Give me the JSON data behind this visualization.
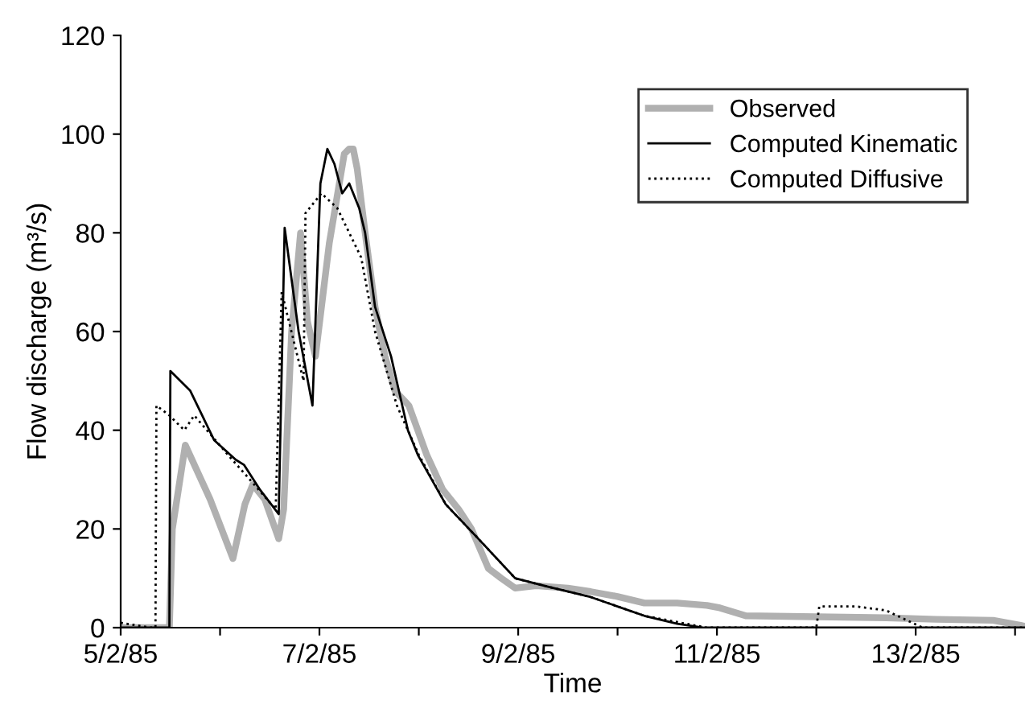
{
  "chart_data": {
    "type": "line",
    "xlabel": "Time",
    "ylabel": "Flow discharge (m³/s)",
    "xlim": [
      "1985-02-05T00:00",
      "1985-02-14T02:24"
    ],
    "ylim": [
      0,
      120
    ],
    "xticks": [
      {
        "value": "1985-02-05",
        "label": "5/2/85"
      },
      {
        "value": "1985-02-06",
        "label": null
      },
      {
        "value": "1985-02-07",
        "label": "7/2/85"
      },
      {
        "value": "1985-02-08",
        "label": null
      },
      {
        "value": "1985-02-09",
        "label": "9/2/85"
      },
      {
        "value": "1985-02-10",
        "label": null
      },
      {
        "value": "1985-02-11",
        "label": "11/2/85"
      },
      {
        "value": "1985-02-12",
        "label": null
      },
      {
        "value": "1985-02-13",
        "label": "13/2/85"
      },
      {
        "value": "1985-02-14",
        "label": null
      }
    ],
    "yticks": [
      0,
      20,
      40,
      60,
      80,
      100,
      120
    ],
    "grid": false,
    "legend": "top right",
    "marker": "none",
    "series": [
      {
        "name": "Observed",
        "color": "#b0b0b0",
        "line_style": "solid",
        "x": [
          "1985-02-05T00:00",
          "1985-02-05T11:46",
          "1985-02-05T12:29",
          "1985-02-05T15:36",
          "1985-02-05T21:36",
          "1985-02-06T03:07",
          "1985-02-06T06:00",
          "1985-02-06T07:55",
          "1985-02-06T10:48",
          "1985-02-06T14:10",
          "1985-02-06T15:22",
          "1985-02-06T17:17",
          "1985-02-06T19:26",
          "1985-02-06T21:07",
          "1985-02-06T23:02",
          "1985-02-07T02:24",
          "1985-02-07T06:00",
          "1985-02-07T07:12",
          "1985-02-07T08:10",
          "1985-02-07T09:07",
          "1985-02-07T11:02",
          "1985-02-07T13:26",
          "1985-02-07T15:50",
          "1985-02-07T18:14",
          "1985-02-07T21:36",
          "1985-02-08T01:55",
          "1985-02-08T05:46",
          "1985-02-08T09:36",
          "1985-02-08T12:43",
          "1985-02-08T16:48",
          "1985-02-08T19:55",
          "1985-02-08T23:17",
          "1985-02-09T04:19",
          "1985-02-09T12:00",
          "1985-02-09T17:31",
          "1985-02-10T00:00",
          "1985-02-10T06:29",
          "1985-02-10T14:24",
          "1985-02-10T21:36",
          "1985-02-11T00:43",
          "1985-02-11T06:58",
          "1985-02-12T00:00",
          "1985-02-12T16:48",
          "1985-02-13T04:48",
          "1985-02-13T18:43",
          "1985-02-14T02:24"
        ],
        "values": [
          0,
          0,
          20,
          37,
          26,
          14,
          25,
          29,
          26,
          18,
          24,
          60,
          80,
          62,
          55,
          78,
          96,
          97,
          97,
          93,
          80,
          65,
          55,
          48,
          45,
          35,
          28,
          24,
          20,
          12,
          10,
          8,
          8.5,
          8,
          7.3,
          6.3,
          5,
          5,
          4.5,
          4,
          2.4,
          2.2,
          2,
          1.7,
          1.5,
          0.3
        ]
      },
      {
        "name": "Computed Kinematic",
        "color": "#000000",
        "line_style": "solid",
        "x": [
          "1985-02-05T00:00",
          "1985-02-05T11:46",
          "1985-02-05T12:00",
          "1985-02-05T16:48",
          "1985-02-05T22:34",
          "1985-02-06T03:50",
          "1985-02-06T05:46",
          "1985-02-06T09:36",
          "1985-02-06T14:10",
          "1985-02-06T15:36",
          "1985-02-06T18:58",
          "1985-02-06T22:19",
          "1985-02-07T00:14",
          "1985-02-07T01:55",
          "1985-02-07T03:36",
          "1985-02-07T05:31",
          "1985-02-07T07:12",
          "1985-02-07T09:36",
          "1985-02-07T11:02",
          "1985-02-07T13:26",
          "1985-02-07T17:17",
          "1985-02-07T21:22",
          "1985-02-07T23:46",
          "1985-02-08T06:29",
          "1985-02-08T14:24",
          "1985-02-08T23:17",
          "1985-02-09T07:12",
          "1985-02-09T17:31",
          "1985-02-10T06:29",
          "1985-02-10T14:24",
          "1985-02-10T20:53",
          "1985-02-14T02:24"
        ],
        "values": [
          0,
          0,
          52,
          48,
          38,
          34,
          33,
          28,
          23,
          81,
          60,
          45,
          90,
          97,
          94,
          88,
          90,
          85,
          80,
          65,
          55,
          40,
          35,
          25,
          18,
          10,
          8.3,
          6.2,
          2.4,
          0.8,
          0,
          0
        ]
      },
      {
        "name": "Computed Diffusive",
        "color": "#000000",
        "line_style": "dotted",
        "x": [
          "1985-02-05T00:00",
          "1985-02-05T07:12",
          "1985-02-05T08:24",
          "1985-02-05T08:38",
          "1985-02-05T11:46",
          "1985-02-05T15:22",
          "1985-02-05T17:46",
          "1985-02-06T01:55",
          "1985-02-06T07:12",
          "1985-02-06T13:26",
          "1985-02-06T14:53",
          "1985-02-06T20:10",
          "1985-02-06T20:38",
          "1985-02-07T00:29",
          "1985-02-07T04:19",
          "1985-02-07T10:05",
          "1985-02-07T13:26",
          "1985-02-07T18:43",
          "1985-02-08T00:00",
          "1985-02-08T06:29",
          "1985-02-08T14:24",
          "1985-02-08T23:17",
          "1985-02-09T07:12",
          "1985-02-09T17:31",
          "1985-02-10T06:29",
          "1985-02-10T21:36",
          "1985-02-12T00:00",
          "1985-02-12T00:43",
          "1985-02-12T09:36",
          "1985-02-12T16:48",
          "1985-02-13T01:41",
          "1985-02-14T02:24"
        ],
        "values": [
          1,
          0,
          0,
          45,
          43,
          40,
          43,
          35,
          30,
          24,
          68,
          50,
          84,
          88,
          85,
          75,
          60,
          45,
          35,
          25,
          18,
          10,
          8.3,
          6.2,
          2.4,
          0,
          0,
          4.3,
          4.3,
          3.5,
          0,
          0
        ]
      }
    ]
  }
}
